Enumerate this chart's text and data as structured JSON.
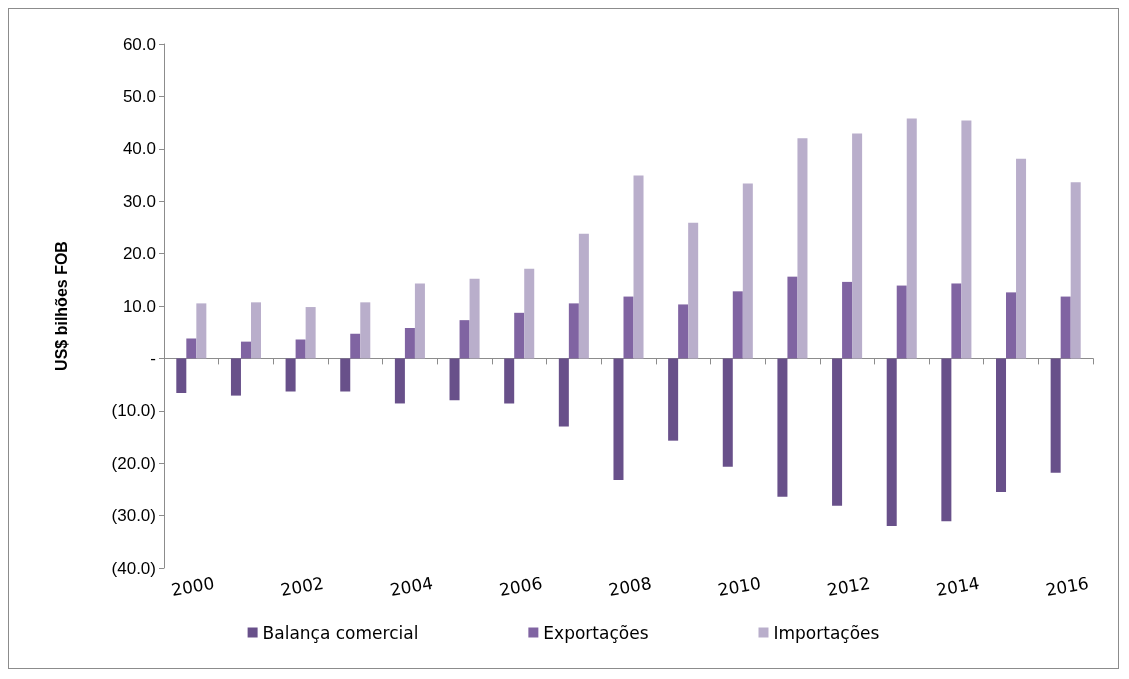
{
  "chart_data": {
    "type": "bar",
    "ylabel": "US$ bilhões FOB",
    "categories": [
      "2000",
      null,
      "2002",
      null,
      "2004",
      null,
      "2006",
      null,
      "2008",
      null,
      "2010",
      null,
      "2012",
      null,
      "2014",
      null,
      "2016"
    ],
    "series": [
      {
        "name": "Balança comercial",
        "color": "#68508a",
        "values": [
          -6.6,
          -7.1,
          -6.3,
          -6.3,
          -8.6,
          -8.0,
          -8.6,
          -13.0,
          -23.2,
          -15.7,
          -20.7,
          -26.4,
          -28.1,
          -32.0,
          -31.1,
          -25.5,
          -21.8
        ]
      },
      {
        "name": "Exportações",
        "color": "#8064a2",
        "values": [
          3.8,
          3.2,
          3.6,
          4.7,
          5.8,
          7.3,
          8.7,
          10.5,
          11.8,
          10.3,
          12.8,
          15.6,
          14.6,
          13.9,
          14.3,
          12.6,
          11.8
        ]
      },
      {
        "name": "Importações",
        "color": "#b9aecb",
        "values": [
          10.5,
          10.7,
          9.8,
          10.7,
          14.3,
          15.2,
          17.1,
          23.8,
          34.9,
          25.9,
          33.4,
          42.0,
          42.9,
          45.8,
          45.4,
          38.1,
          33.6
        ]
      }
    ],
    "ylim": [
      -40,
      60
    ],
    "yticks": [
      {
        "value": -40,
        "label": "(40.0)"
      },
      {
        "value": -30,
        "label": "(30.0)"
      },
      {
        "value": -20,
        "label": "(20.0)"
      },
      {
        "value": -10,
        "label": "(10.0)"
      },
      {
        "value": 0,
        "label": "-"
      },
      {
        "value": 10,
        "label": "10.0"
      },
      {
        "value": 20,
        "label": "20.0"
      },
      {
        "value": 30,
        "label": "30.0"
      },
      {
        "value": 40,
        "label": "40.0"
      },
      {
        "value": 50,
        "label": "50.0"
      },
      {
        "value": 60,
        "label": "60.0"
      }
    ],
    "legend": "bottom"
  }
}
